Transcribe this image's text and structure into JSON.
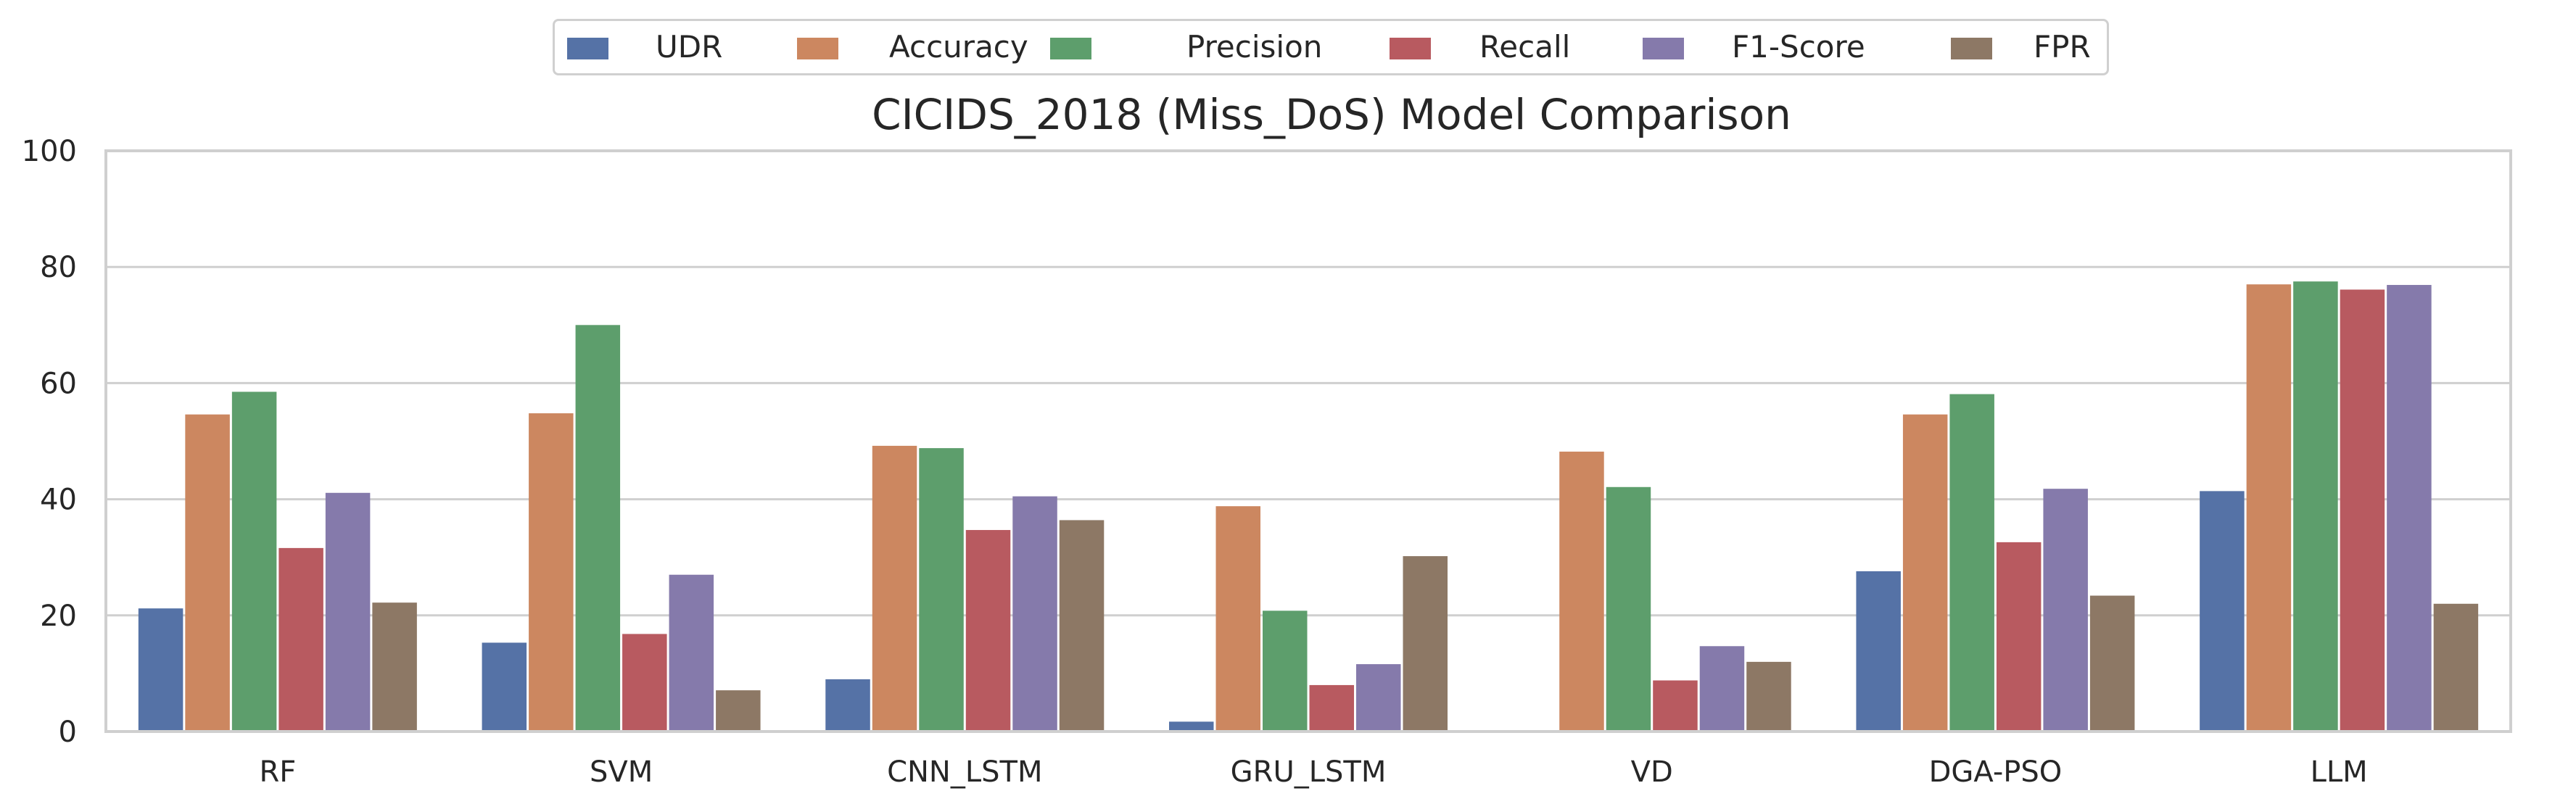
{
  "chart_data": {
    "type": "bar",
    "title": "CICIDS_2018 (Miss_DoS) Model Comparison",
    "xlabel": "",
    "ylabel": "",
    "ylim": [
      0,
      100
    ],
    "yticks": [
      "0",
      "20",
      "40",
      "60",
      "80",
      "100"
    ],
    "categories": [
      "RF",
      "SVM",
      "CNN_LSTM",
      "GRU_LSTM",
      "VD",
      "DGA-PSO",
      "LLM"
    ],
    "series": [
      {
        "name": "UDR",
        "color": "#5572a6",
        "values": [
          21.2,
          15.3,
          9.0,
          1.7,
          0.0,
          27.6,
          41.4
        ]
      },
      {
        "name": "Accuracy",
        "color": "#cc8760",
        "values": [
          54.6,
          54.8,
          49.2,
          38.8,
          48.2,
          54.6,
          77.0
        ]
      },
      {
        "name": "Precision",
        "color": "#5d9e6c",
        "values": [
          58.5,
          70.0,
          48.8,
          20.8,
          42.1,
          58.1,
          77.5
        ]
      },
      {
        "name": "Recall",
        "color": "#b85a60",
        "values": [
          31.6,
          16.8,
          34.7,
          8.0,
          8.8,
          32.6,
          76.1
        ]
      },
      {
        "name": "F1-Score",
        "color": "#857aab",
        "values": [
          41.1,
          27.0,
          40.5,
          11.6,
          14.7,
          41.8,
          76.9
        ]
      },
      {
        "name": "FPR",
        "color": "#8d7865",
        "values": [
          22.2,
          7.1,
          36.4,
          30.2,
          12.0,
          23.4,
          22.0
        ]
      }
    ],
    "legend_position": "top-center",
    "grid": true
  }
}
